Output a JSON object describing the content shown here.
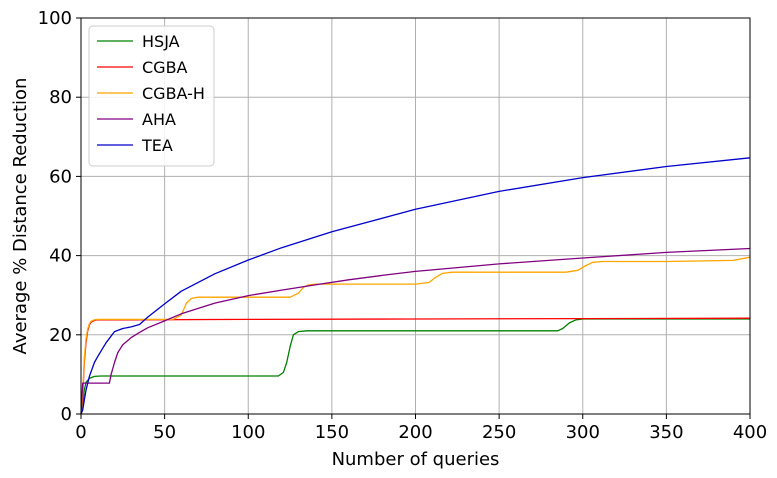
{
  "chart_data": {
    "type": "line",
    "title": "",
    "xlabel": "Number of queries",
    "ylabel": "Average % Distance Reduction",
    "xlim": [
      0,
      400
    ],
    "ylim": [
      0,
      100
    ],
    "xticks": [
      0,
      50,
      100,
      150,
      200,
      250,
      300,
      350,
      400
    ],
    "yticks": [
      0,
      20,
      40,
      60,
      80,
      100
    ],
    "grid": true,
    "legend_position": "top-left",
    "series": [
      {
        "name": "HSJA",
        "color": "#008000",
        "x": [
          0,
          1,
          2,
          3,
          5,
          8,
          12,
          20,
          60,
          100,
          118,
          121,
          123,
          125,
          127,
          130,
          135,
          150,
          200,
          250,
          285,
          288,
          292,
          296,
          300,
          310,
          350,
          400
        ],
        "y": [
          0,
          2,
          6,
          8,
          9,
          9.5,
          9.6,
          9.6,
          9.6,
          9.6,
          9.6,
          10.5,
          13,
          17,
          20,
          20.8,
          21,
          21,
          21,
          21,
          21,
          21.6,
          23,
          23.8,
          24,
          24,
          24,
          24
        ]
      },
      {
        "name": "CGBA",
        "color": "#ff0000",
        "x": [
          0,
          1,
          2,
          3,
          4,
          5,
          6,
          8,
          10,
          15,
          30,
          100,
          200,
          300,
          400
        ],
        "y": [
          0,
          4,
          13,
          18,
          21,
          22.5,
          23.2,
          23.6,
          23.8,
          23.8,
          23.8,
          23.9,
          24,
          24.1,
          24.2
        ]
      },
      {
        "name": "CGBA-H",
        "color": "#ffa500",
        "x": [
          0,
          1,
          2,
          3,
          4,
          5,
          6,
          8,
          10,
          15,
          30,
          55,
          60,
          63,
          66,
          70,
          100,
          125,
          130,
          133,
          136,
          140,
          160,
          200,
          208,
          212,
          216,
          222,
          250,
          290,
          297,
          302,
          306,
          312,
          320,
          350,
          390,
          400
        ],
        "y": [
          0,
          5,
          14,
          19,
          21.5,
          22.8,
          23.4,
          23.8,
          23.9,
          23.9,
          23.9,
          23.9,
          25,
          28,
          29.2,
          29.5,
          29.5,
          29.5,
          30.5,
          32,
          32.6,
          32.8,
          32.8,
          32.8,
          33.2,
          34.5,
          35.5,
          35.8,
          35.8,
          35.8,
          36.3,
          37.5,
          38.3,
          38.5,
          38.5,
          38.5,
          38.8,
          39.6
        ]
      },
      {
        "name": "AHA",
        "color": "#800080",
        "x": [
          0,
          1,
          2,
          5,
          10,
          15,
          17,
          18,
          20,
          22,
          25,
          30,
          35,
          40,
          50,
          60,
          80,
          100,
          120,
          140,
          160,
          180,
          200,
          250,
          300,
          350,
          400
        ],
        "y": [
          0,
          7.8,
          7.8,
          7.8,
          7.8,
          7.8,
          7.8,
          10,
          13,
          15.5,
          17.5,
          19.3,
          20.6,
          21.8,
          23.5,
          25.3,
          28,
          29.9,
          31.3,
          32.6,
          33.9,
          35,
          36,
          37.9,
          39.4,
          40.8,
          41.8
        ]
      },
      {
        "name": "TEA",
        "color": "#0000cc",
        "x": [
          0,
          1,
          2,
          3,
          5,
          8,
          10,
          15,
          20,
          25,
          30,
          35,
          40,
          50,
          60,
          80,
          100,
          120,
          150,
          200,
          250,
          300,
          350,
          400
        ],
        "y": [
          0,
          1,
          3.5,
          6,
          9.5,
          13,
          14.5,
          18,
          20.8,
          21.6,
          22,
          22.6,
          24.5,
          27.8,
          31,
          35.4,
          38.9,
          42,
          46,
          51.7,
          56.2,
          59.7,
          62.5,
          64.7
        ]
      }
    ]
  }
}
